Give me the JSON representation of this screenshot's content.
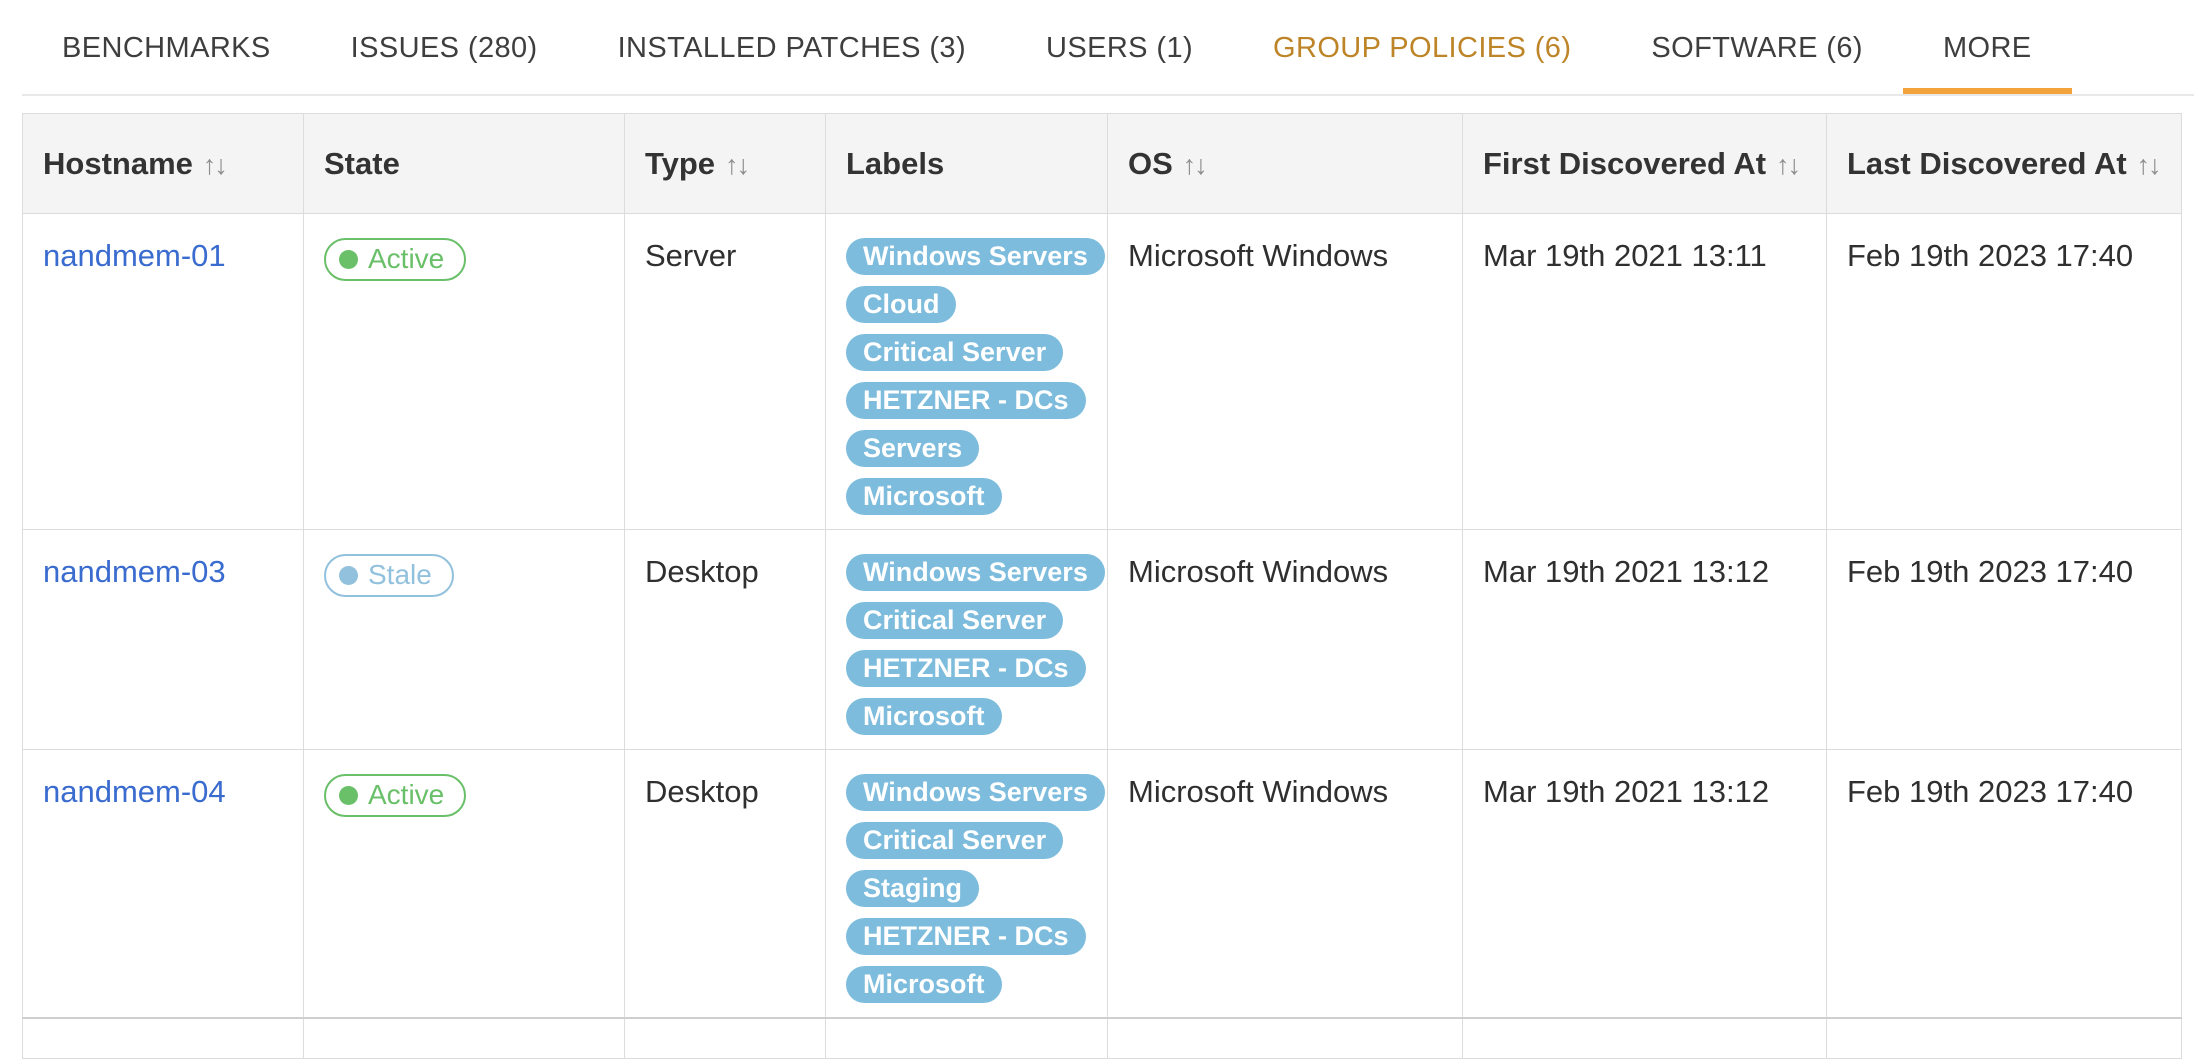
{
  "colors": {
    "accent": "#f2a33c",
    "tab_highlight": "#bd8428",
    "link": "#3a6bcf",
    "pill": "#7dbcdc",
    "header_bg": "#f4f4f4",
    "state_active": "#6abf69",
    "state_stale": "#92c1dd"
  },
  "tabs": [
    {
      "label": "BENCHMARKS",
      "highlighted": false,
      "active": false
    },
    {
      "label": "ISSUES (280)",
      "highlighted": false,
      "active": false
    },
    {
      "label": "INSTALLED PATCHES (3)",
      "highlighted": false,
      "active": false
    },
    {
      "label": "USERS (1)",
      "highlighted": false,
      "active": false
    },
    {
      "label": "GROUP POLICIES (6)",
      "highlighted": true,
      "active": false
    },
    {
      "label": "SOFTWARE (6)",
      "highlighted": false,
      "active": false
    },
    {
      "label": "MORE",
      "highlighted": false,
      "active": true
    }
  ],
  "table": {
    "sort_icon": "↑↓",
    "columns": [
      {
        "label": "Hostname",
        "sortable": true
      },
      {
        "label": "State",
        "sortable": false
      },
      {
        "label": "Type",
        "sortable": true
      },
      {
        "label": "Labels",
        "sortable": false
      },
      {
        "label": "OS",
        "sortable": true
      },
      {
        "label": "First Discovered At",
        "sortable": true
      },
      {
        "label": "Last Discovered At",
        "sortable": true
      }
    ],
    "states": {
      "Active": "#6abf69",
      "Stale": "#92c1dd"
    },
    "rows": [
      {
        "hostname": "nandmem-01",
        "state": "Active",
        "type": "Server",
        "labels": [
          "Windows Servers",
          "Cloud",
          "Critical Server",
          "HETZNER - DCs",
          "Servers",
          "Microsoft"
        ],
        "os": "Microsoft Windows",
        "first_discovered_at": "Mar 19th 2021 13:11",
        "last_discovered_at": "Feb 19th 2023 17:40"
      },
      {
        "hostname": "nandmem-03",
        "state": "Stale",
        "type": "Desktop",
        "labels": [
          "Windows Servers",
          "Critical Server",
          "HETZNER - DCs",
          "Microsoft"
        ],
        "os": "Microsoft Windows",
        "first_discovered_at": "Mar 19th 2021 13:12",
        "last_discovered_at": "Feb 19th 2023 17:40"
      },
      {
        "hostname": "nandmem-04",
        "state": "Active",
        "type": "Desktop",
        "labels": [
          "Windows Servers",
          "Critical Server",
          "Staging",
          "HETZNER - DCs",
          "Microsoft"
        ],
        "os": "Microsoft Windows",
        "first_discovered_at": "Mar 19th 2021 13:12",
        "last_discovered_at": "Feb 19th 2023 17:40"
      }
    ]
  }
}
